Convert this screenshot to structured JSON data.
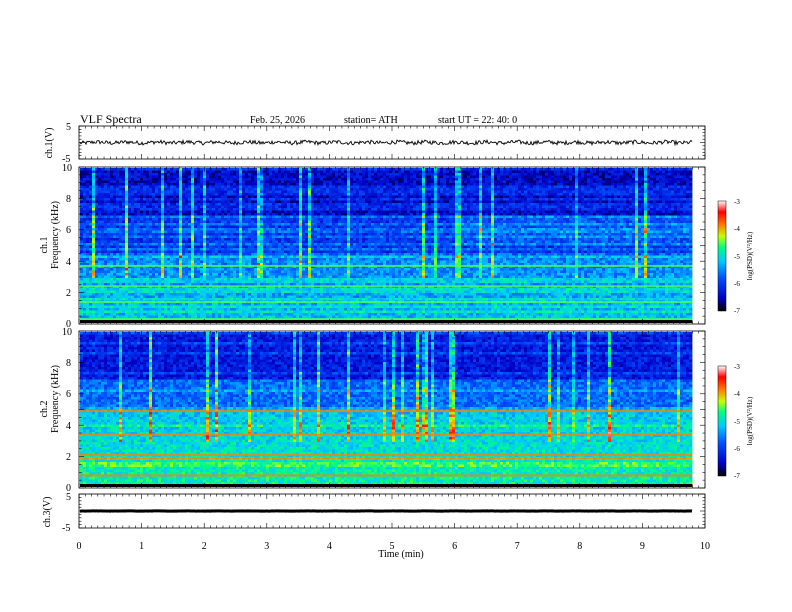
{
  "header": {
    "title": "VLF  Spectra",
    "date": "Feb. 25, 2026",
    "station": "station= ATH",
    "start_ut": "start  UT  =   22: 40: 0"
  },
  "chart_data": {
    "type": "heatmap",
    "title": "VLF  Spectra",
    "xlabel": "Time  (min)",
    "xlim": [
      0,
      10
    ],
    "x_ticks": [
      "0",
      "1",
      "2",
      "3",
      "4",
      "5",
      "6",
      "7",
      "8",
      "9",
      "10"
    ],
    "data_end_min": 9.8,
    "panels": [
      {
        "id": "ch1_voltage",
        "type": "line",
        "ylabel": "ch.1(V)",
        "ylim": [
          -5,
          5
        ],
        "y_ticks": [
          "5",
          "-5"
        ],
        "baseline_v": 0,
        "noise_amplitude_v": 0.6
      },
      {
        "id": "ch1_spectrogram",
        "type": "heatmap",
        "ylabel_line1": "ch.1",
        "ylabel_line2": "Frequency (kHz)",
        "ylim": [
          0,
          10
        ],
        "y_ticks": [
          "10",
          "8",
          "6",
          "4",
          "2",
          "0"
        ],
        "strong_lines_khz": [
          0.3,
          1.4,
          2.4,
          3.7
        ],
        "colorbar": {
          "label": "log(PSD)(V²/Hz)",
          "range": [
            -7,
            -3
          ],
          "ticks": [
            "-3",
            "-4",
            "-5",
            "-6",
            "-7"
          ]
        }
      },
      {
        "id": "ch2_spectrogram",
        "type": "heatmap",
        "ylabel_line1": "ch.2",
        "ylabel_line2": "Frequency (kHz)",
        "ylim": [
          0,
          10
        ],
        "y_ticks": [
          "10",
          "8",
          "6",
          "4",
          "2",
          "0"
        ],
        "strong_lines_khz": [
          0.8,
          1.9,
          2.1,
          3.4,
          4.9
        ],
        "colorbar": {
          "label": "log(PSD)(V²/Hz)",
          "range": [
            -7,
            -3
          ],
          "ticks": [
            "-3",
            "-4",
            "-5",
            "-6",
            "-7"
          ]
        }
      },
      {
        "id": "ch3_voltage",
        "type": "line",
        "ylabel": "ch.3(V)",
        "ylim": [
          -5,
          5
        ],
        "y_ticks": [
          "5",
          "-5"
        ],
        "baseline_v": 0,
        "noise_amplitude_v": 0.1
      }
    ],
    "colorscale": [
      "#000000",
      "#0000c8",
      "#0050ff",
      "#00c8ff",
      "#00ff80",
      "#c8ff00",
      "#ff8000",
      "#ff0000",
      "#ffffff"
    ]
  }
}
